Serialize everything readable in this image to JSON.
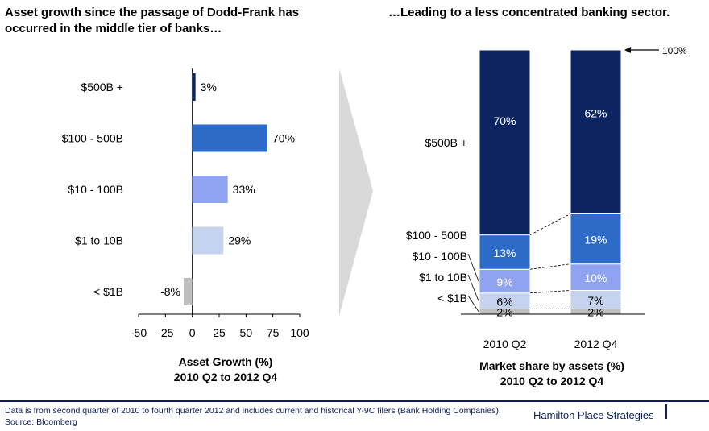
{
  "left_title": "Asset growth since the passage of Dodd-Frank has occurred in the middle tier of banks…",
  "right_title": "…Leading to a less concentrated banking sector.",
  "left_xlabel_line1": "Asset Growth (%)",
  "left_xlabel_line2": "2010 Q2 to 2012 Q4",
  "right_xlabel_line1": "Market share by assets (%)",
  "right_xlabel_line2": "2010 Q2 to 2012 Q4",
  "footer_note": "Data is from second quarter of 2010 to fourth quarter 2012 and includes current and historical Y-9C filers (Bank Holding Companies). Source: Bloomberg",
  "footer_brand": "Hamilton Place Strategies",
  "colors": {
    "tier_500b_plus": "#0c2461",
    "tier_100_500b": "#2d6bc9",
    "tier_10_100b": "#8fa3f0",
    "tier_1_10b": "#c5d3ee",
    "tier_lt_1b": "#bfbfbf",
    "footer": "#0a1f5c",
    "arrow": "#d9d9d9"
  },
  "chart_data": [
    {
      "type": "bar",
      "orientation": "horizontal",
      "categories": [
        "$500B +",
        "$100 - 500B",
        "$10 - 100B",
        "$1 to 10B",
        "< $1B"
      ],
      "values": [
        3,
        70,
        33,
        29,
        -8
      ],
      "value_labels": [
        "3%",
        "70%",
        "33%",
        "29%",
        "-8%"
      ],
      "xlim": [
        -50,
        100
      ],
      "xticks": [
        -50,
        -25,
        0,
        25,
        50,
        75,
        100
      ],
      "xticklabels": [
        "-50",
        "-25",
        "0",
        "25",
        "50",
        "75",
        "100"
      ],
      "grid": false
    },
    {
      "type": "bar",
      "stacked": true,
      "categories": [
        "2010 Q2",
        "2012 Q4"
      ],
      "series": [
        {
          "name": "< $1B",
          "values": [
            2,
            2
          ],
          "labels": [
            "2%",
            "2%"
          ]
        },
        {
          "name": "$1 to 10B",
          "values": [
            6,
            7
          ],
          "labels": [
            "6%",
            "7%"
          ]
        },
        {
          "name": "$10 - 100B",
          "values": [
            9,
            10
          ],
          "labels": [
            "9%",
            "10%"
          ]
        },
        {
          "name": "$100 - 500B",
          "values": [
            13,
            19
          ],
          "labels": [
            "13%",
            "19%"
          ]
        },
        {
          "name": "$500B +",
          "values": [
            70,
            62
          ],
          "labels": [
            "70%",
            "62%"
          ]
        }
      ],
      "total_annotation": "100%",
      "ylim": [
        0,
        100
      ],
      "grid": false
    }
  ]
}
